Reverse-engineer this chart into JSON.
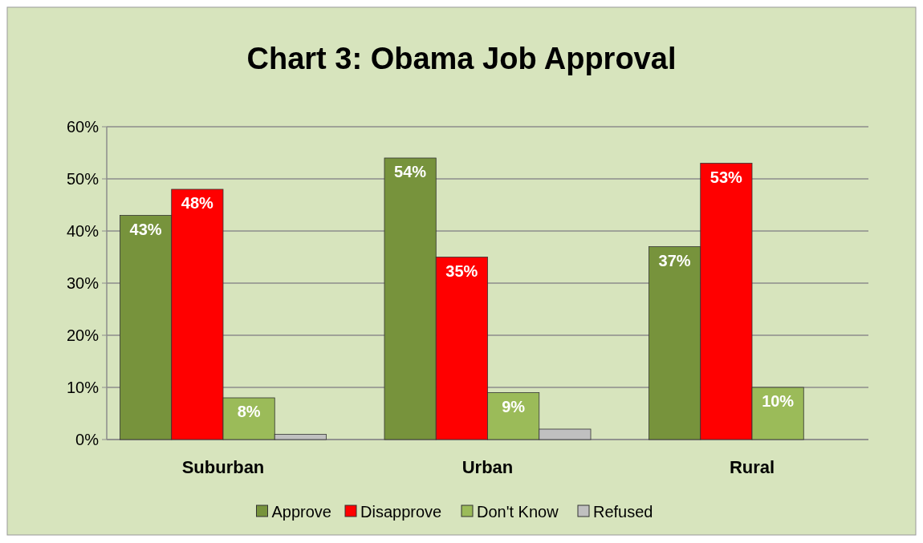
{
  "chart_data": {
    "type": "bar",
    "title": "Chart 3: Obama Job Approval",
    "categories": [
      "Suburban",
      "Urban",
      "Rural"
    ],
    "series": [
      {
        "name": "Approve",
        "color": "#77933c",
        "values": [
          43,
          54,
          37
        ],
        "value_labels": [
          "43%",
          "54%",
          "37%"
        ]
      },
      {
        "name": "Disapprove",
        "color": "#ff0000",
        "values": [
          48,
          35,
          53
        ],
        "value_labels": [
          "48%",
          "35%",
          "53%"
        ]
      },
      {
        "name": "Don't Know",
        "color": "#9bbb59",
        "values": [
          8,
          9,
          10
        ],
        "value_labels": [
          "8%",
          "9%",
          "10%"
        ]
      },
      {
        "name": "Refused",
        "color": "#c0c0c0",
        "values": [
          1,
          2,
          0
        ]
      }
    ],
    "ylim": [
      0,
      60
    ],
    "yticks": [
      {
        "value": 0,
        "label": "0%"
      },
      {
        "value": 10,
        "label": "10%"
      },
      {
        "value": 20,
        "label": "20%"
      },
      {
        "value": 30,
        "label": "30%"
      },
      {
        "value": 40,
        "label": "40%"
      },
      {
        "value": 50,
        "label": "50%"
      },
      {
        "value": 60,
        "label": "60%"
      }
    ],
    "grid": "y",
    "legend": "bottom"
  }
}
